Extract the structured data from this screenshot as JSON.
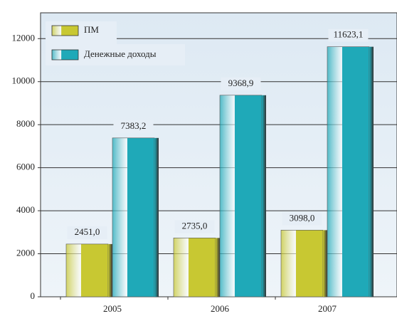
{
  "chart_data": {
    "type": "bar",
    "categories": [
      "2005",
      "2006",
      "2007"
    ],
    "series": [
      {
        "name": "ПМ",
        "color": "#c8c832",
        "values": [
          2451.0,
          2735.0,
          3098.0
        ],
        "value_labels": [
          "2451,0",
          "2735,0",
          "3098,0"
        ]
      },
      {
        "name": "Денежные доходы",
        "color": "#1fa9b8",
        "values": [
          7383.2,
          9368.9,
          11623.1
        ],
        "value_labels": [
          "7383,2",
          "9368,9",
          "11623,1"
        ]
      }
    ],
    "ylim": [
      0,
      13200
    ],
    "yticks": [
      0,
      2000,
      4000,
      6000,
      8000,
      10000,
      12000
    ],
    "grid": true
  }
}
